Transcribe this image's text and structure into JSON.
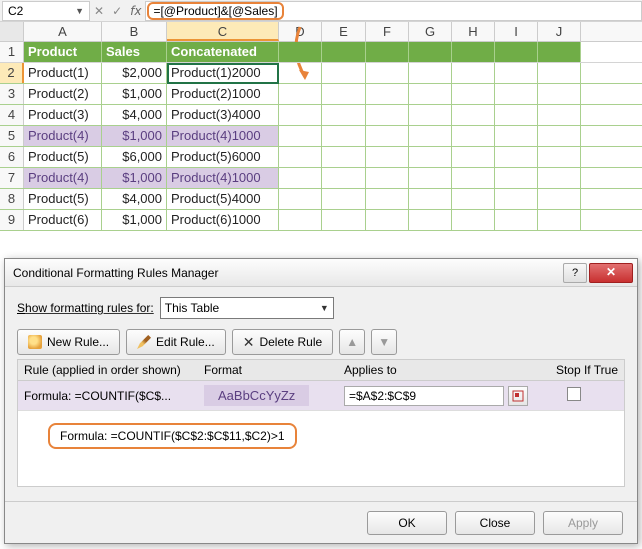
{
  "formula_bar": {
    "cell_ref": "C2",
    "formula": "=[@Product]&[@Sales]"
  },
  "columns": [
    "A",
    "B",
    "C",
    "D",
    "E",
    "F",
    "G",
    "H",
    "I",
    "J"
  ],
  "headers": {
    "A": "Product",
    "B": "Sales",
    "C": "Concatenated"
  },
  "rows": [
    {
      "n": "2",
      "A": "Product(1)",
      "B": "$2,000",
      "C": "Product(1)2000",
      "dup": false,
      "active": true
    },
    {
      "n": "3",
      "A": "Product(2)",
      "B": "$1,000",
      "C": "Product(2)1000",
      "dup": false
    },
    {
      "n": "4",
      "A": "Product(3)",
      "B": "$4,000",
      "C": "Product(3)4000",
      "dup": false
    },
    {
      "n": "5",
      "A": "Product(4)",
      "B": "$1,000",
      "C": "Product(4)1000",
      "dup": true
    },
    {
      "n": "6",
      "A": "Product(5)",
      "B": "$6,000",
      "C": "Product(5)6000",
      "dup": false
    },
    {
      "n": "7",
      "A": "Product(4)",
      "B": "$1,000",
      "C": "Product(4)1000",
      "dup": true
    },
    {
      "n": "8",
      "A": "Product(5)",
      "B": "$4,000",
      "C": "Product(5)4000",
      "dup": false
    },
    {
      "n": "9",
      "A": "Product(6)",
      "B": "$1,000",
      "C": "Product(6)1000",
      "dup": false
    }
  ],
  "dialog": {
    "title": "Conditional Formatting Rules Manager",
    "scope_label": "Show formatting rules for:",
    "scope_value": "This Table",
    "buttons": {
      "new": "New Rule...",
      "edit": "Edit Rule...",
      "delete": "Delete Rule"
    },
    "cols": {
      "rule": "Rule (applied in order shown)",
      "format": "Format",
      "applies": "Applies to",
      "stopif": "Stop If True"
    },
    "rule": {
      "formula_short": "Formula: =COUNTIF($C$...",
      "preview": "AaBbCcYyZz",
      "applies_to": "=$A$2:$C$9",
      "full_formula": "Formula: =COUNTIF($C$2:$C$11,$C2)>1"
    },
    "footer": {
      "ok": "OK",
      "close": "Close",
      "apply": "Apply"
    }
  },
  "colors": {
    "table_header": "#70ad47",
    "dup_fill": "#d9cce4",
    "dup_text": "#5a3e80",
    "highlight_border": "#e8833a",
    "selection_green": "#217346"
  }
}
